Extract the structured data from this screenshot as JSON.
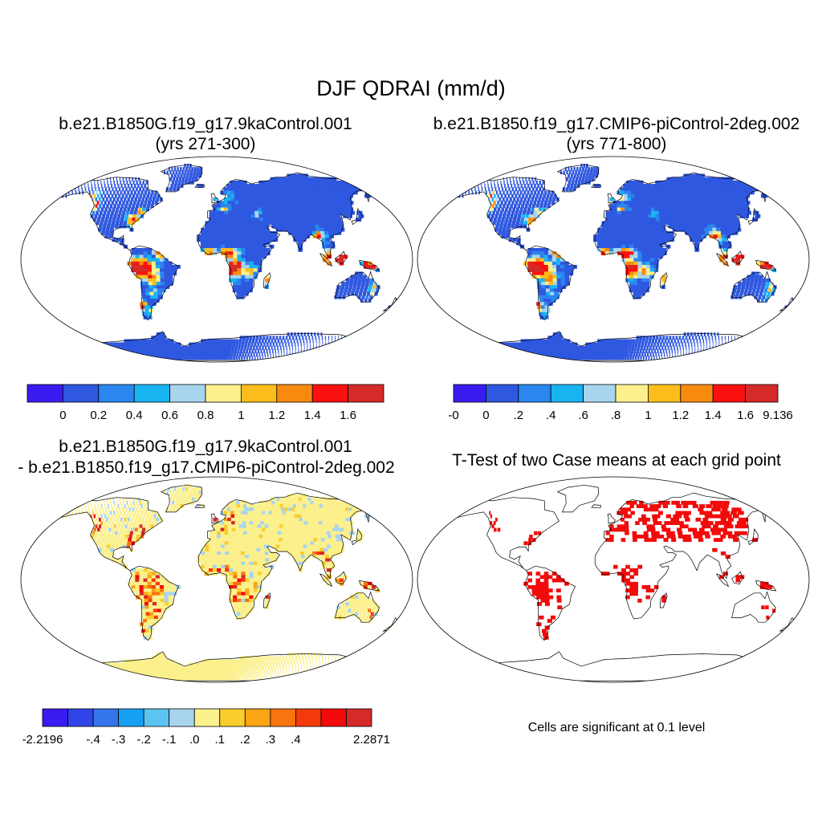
{
  "title": "DJF QDRAI (mm/d)",
  "panels": [
    {
      "id": "case1",
      "title": "b.e21.B1850G.f19_g17.9kaControl.001",
      "subtitle": "(yrs 271-300)",
      "colorbar": {
        "colors": [
          "#3a1cf0",
          "#2f58e0",
          "#2b86f0",
          "#18b4f2",
          "#a8d4ee",
          "#fbf08c",
          "#fbbd1c",
          "#f88a10",
          "#fb1010",
          "#d42a28"
        ],
        "labels": [
          "0",
          "0.2",
          "0.4",
          "0.6",
          "0.8",
          "1",
          "1.2",
          "1.4",
          "1.6"
        ]
      }
    },
    {
      "id": "case2",
      "title": "b.e21.B1850.f19_g17.CMIP6-piControl-2deg.002",
      "subtitle": "(yrs 771-800)",
      "colorbar": {
        "colors": [
          "#3a1cf0",
          "#2f58e0",
          "#2b86f0",
          "#18b4f2",
          "#a8d4ee",
          "#fbf08c",
          "#fbbd1c",
          "#f88a10",
          "#fb1010",
          "#d42a28"
        ],
        "labels": [
          "-0",
          "0",
          ".2",
          ".4",
          ".6",
          ".8",
          "1",
          "1.2",
          "1.4",
          "1.6",
          "9.136"
        ]
      }
    },
    {
      "id": "difference",
      "title": "b.e21.B1850G.f19_g17.9kaControl.001",
      "subtitle": "- b.e21.B1850.f19_g17.CMIP6-piControl-2deg.002",
      "colorbar": {
        "colors": [
          "#3a1cf0",
          "#2f45e8",
          "#3475ea",
          "#16a0f4",
          "#5cc4f0",
          "#a8d4ee",
          "#fbf08c",
          "#fbcd2c",
          "#fba414",
          "#f87410",
          "#f43a0c",
          "#f30a0a",
          "#d42a28"
        ],
        "labels": [
          "-2.2196",
          "-.4",
          "-.3",
          "-.2",
          "-.1",
          ".0",
          ".1",
          ".2",
          ".3",
          ".4",
          "2.2871"
        ]
      }
    },
    {
      "id": "ttest",
      "title": "T-Test of two Case means at each grid point",
      "note": "Cells are significant at 0.1 level",
      "significant_color": "#f30a0a"
    }
  ],
  "map_colors": {
    "land_base_case": "#2f58e0",
    "land_base_diff": "#fbf08c",
    "coast": "#000000"
  }
}
